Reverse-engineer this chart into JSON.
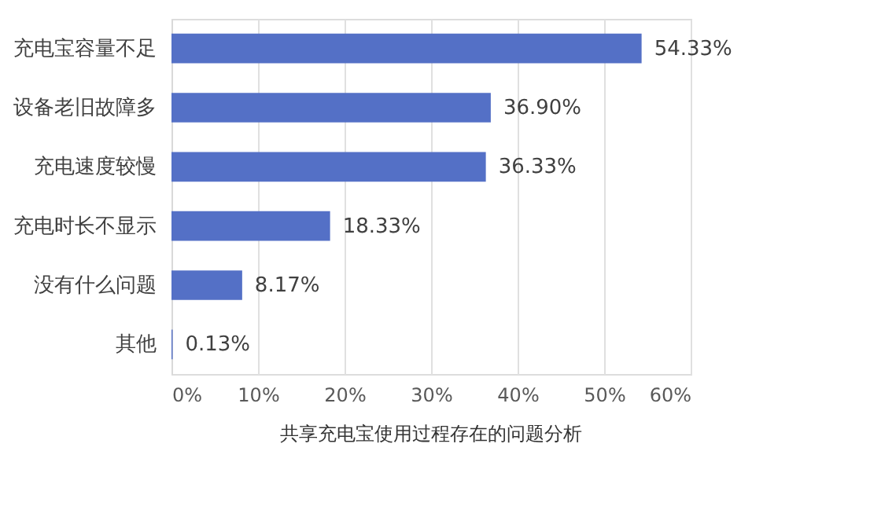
{
  "chart_data": {
    "type": "bar",
    "orientation": "horizontal",
    "title": "共享充电宝使用过程存在的问题分析",
    "categories": [
      "充电宝容量不足",
      "设备老旧故障多",
      "充电速度较慢",
      "充电时长不显示",
      "没有什么问题",
      "其他"
    ],
    "values": [
      54.33,
      36.9,
      36.33,
      18.33,
      8.17,
      0.13
    ],
    "value_labels": [
      "54.33%",
      "36.90%",
      "36.33%",
      "18.33%",
      "8.17%",
      "0.13%"
    ],
    "color": "#5470c6",
    "xlim": [
      0,
      60
    ],
    "xticks": [
      {
        "value": 0,
        "label": "0%"
      },
      {
        "value": 10,
        "label": "10%"
      },
      {
        "value": 20,
        "label": "20%"
      },
      {
        "value": 30,
        "label": "30%"
      },
      {
        "value": 40,
        "label": "40%"
      },
      {
        "value": 50,
        "label": "50%"
      },
      {
        "value": 60,
        "label": "60%"
      }
    ],
    "grid": "x"
  }
}
